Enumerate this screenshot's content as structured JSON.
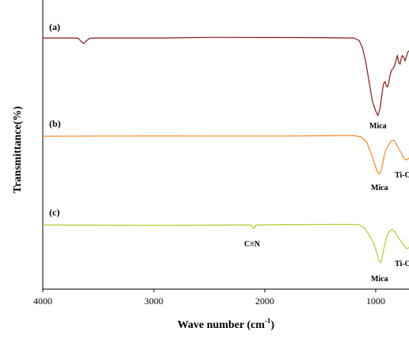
{
  "chart_data": {
    "type": "line",
    "xlabel": "Wave number (cm",
    "xlabel_sup": "-1",
    "xlabel_close": ")",
    "ylabel": "Transmittance(%)",
    "xlim": [
      4000,
      700
    ],
    "x_reversed": true,
    "xticks": [
      "4000",
      "3000",
      "2000",
      "1000"
    ],
    "yticks": [],
    "grid": false,
    "legend": "none",
    "series": [
      {
        "label": "(a)",
        "color": "#8B1A1A",
        "points": [
          [
            4000,
            0
          ],
          [
            3720,
            0
          ],
          [
            3680,
            -0.5
          ],
          [
            3650,
            -5
          ],
          [
            3630,
            -7
          ],
          [
            3610,
            -4
          ],
          [
            3580,
            -0.5
          ],
          [
            3540,
            0
          ],
          [
            2900,
            0
          ],
          [
            2500,
            0.8
          ],
          [
            2000,
            0.6
          ],
          [
            1500,
            0.4
          ],
          [
            1200,
            0
          ],
          [
            1150,
            -3
          ],
          [
            1120,
            -12
          ],
          [
            1090,
            -30
          ],
          [
            1060,
            -55
          ],
          [
            1030,
            -80
          ],
          [
            1000,
            -92
          ],
          [
            980,
            -98
          ],
          [
            960,
            -88
          ],
          [
            945,
            -72
          ],
          [
            930,
            -58
          ],
          [
            915,
            -55
          ],
          [
            905,
            -60
          ],
          [
            895,
            -62
          ],
          [
            885,
            -58
          ],
          [
            870,
            -46
          ],
          [
            855,
            -40
          ],
          [
            840,
            -38
          ],
          [
            828,
            -34
          ],
          [
            818,
            -28
          ],
          [
            805,
            -22
          ],
          [
            795,
            -30
          ],
          [
            780,
            -33
          ],
          [
            770,
            -26
          ],
          [
            760,
            -22
          ],
          [
            745,
            -25
          ],
          [
            735,
            -29
          ],
          [
            725,
            -24
          ],
          [
            712,
            -18
          ],
          [
            700,
            -16
          ]
        ]
      },
      {
        "label": "(b)",
        "color": "#F08C28",
        "points": [
          [
            4000,
            0
          ],
          [
            3000,
            0.8
          ],
          [
            2000,
            0.4
          ],
          [
            1600,
            1
          ],
          [
            1200,
            2
          ],
          [
            1130,
            -2
          ],
          [
            1080,
            -15
          ],
          [
            1040,
            -45
          ],
          [
            1010,
            -70
          ],
          [
            985,
            -90
          ],
          [
            965,
            -95
          ],
          [
            950,
            -85
          ],
          [
            935,
            -65
          ],
          [
            920,
            -45
          ],
          [
            905,
            -32
          ],
          [
            890,
            -25
          ],
          [
            875,
            -18
          ],
          [
            860,
            -12
          ],
          [
            845,
            -10
          ],
          [
            830,
            -12
          ],
          [
            815,
            -20
          ],
          [
            800,
            -28
          ],
          [
            785,
            -35
          ],
          [
            770,
            -42
          ],
          [
            755,
            -52
          ],
          [
            740,
            -58
          ],
          [
            725,
            -60
          ],
          [
            712,
            -58
          ],
          [
            700,
            -55
          ]
        ]
      },
      {
        "label": "(c)",
        "color": "#BCC82A",
        "points": [
          [
            4000,
            0
          ],
          [
            3000,
            -1
          ],
          [
            2200,
            0
          ],
          [
            2130,
            0
          ],
          [
            2110,
            -4
          ],
          [
            2100,
            -10
          ],
          [
            2090,
            -5
          ],
          [
            2080,
            -1
          ],
          [
            2060,
            0
          ],
          [
            1700,
            1
          ],
          [
            1300,
            1.5
          ],
          [
            1150,
            1
          ],
          [
            1100,
            -8
          ],
          [
            1060,
            -25
          ],
          [
            1020,
            -45
          ],
          [
            990,
            -70
          ],
          [
            970,
            -90
          ],
          [
            955,
            -95
          ],
          [
            945,
            -85
          ],
          [
            930,
            -65
          ],
          [
            915,
            -45
          ],
          [
            900,
            -30
          ],
          [
            885,
            -20
          ],
          [
            870,
            -14
          ],
          [
            855,
            -12
          ],
          [
            840,
            -14
          ],
          [
            825,
            -18
          ],
          [
            810,
            -26
          ],
          [
            795,
            -32
          ],
          [
            780,
            -38
          ],
          [
            765,
            -44
          ],
          [
            750,
            -50
          ],
          [
            735,
            -56
          ],
          [
            720,
            -60
          ],
          [
            705,
            -58
          ],
          [
            700,
            -56
          ]
        ]
      }
    ],
    "annotations": [
      {
        "text": "Mica",
        "x": 960
      },
      {
        "text": "Mica",
        "x": 940
      },
      {
        "text": "Ti-O",
        "x": 690
      },
      {
        "text": "C≡N",
        "x": 2100
      },
      {
        "text": "Mica",
        "x": 940
      },
      {
        "text": "Ti-O",
        "x": 690
      }
    ]
  }
}
